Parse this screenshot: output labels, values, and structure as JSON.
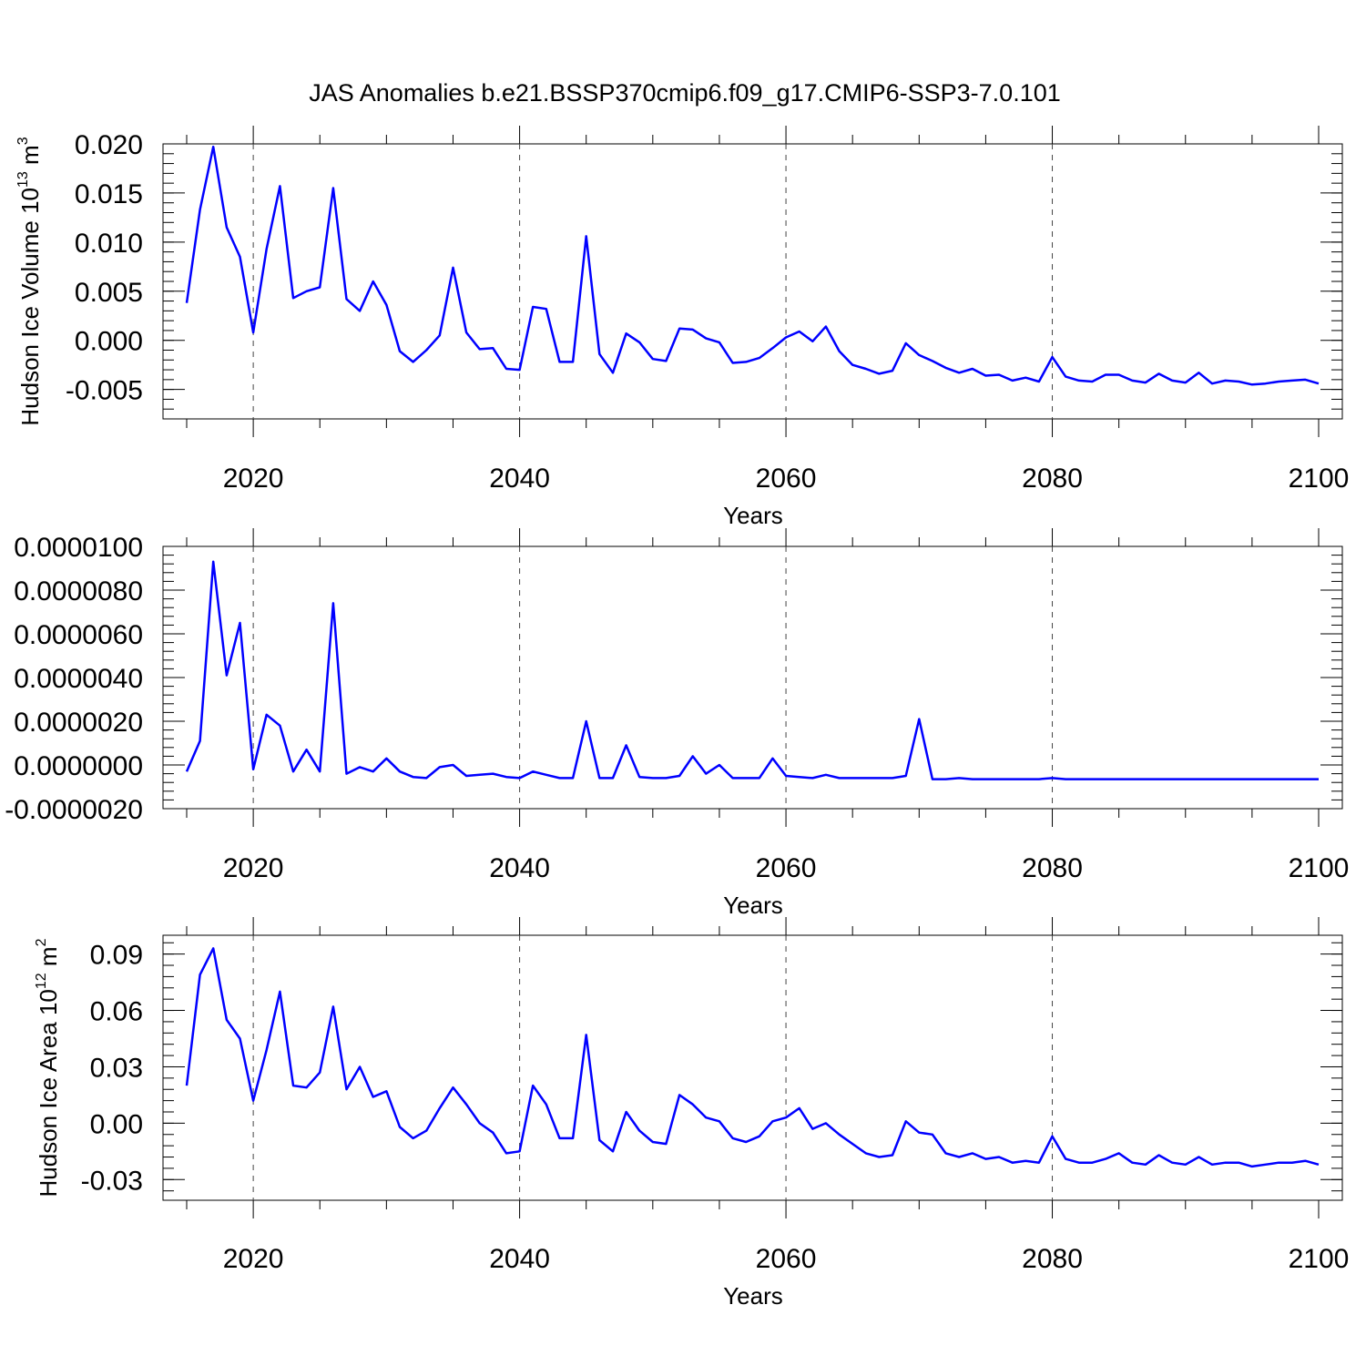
{
  "title": "JAS Anomalies b.e21.BSSP370cmip6.f09_g17.CMIP6-SSP3-7.0.101",
  "chart_data": [
    {
      "type": "line",
      "xlabel": "Years",
      "ylabel": "Hudson Ice Volume 10",
      "ylabel_exp": "13",
      "ylabel_unit": " m",
      "ylabel_unit_exp": "3",
      "xlim": [
        2015,
        2100
      ],
      "ylim": [
        -0.008,
        0.02
      ],
      "xticks": [
        2020,
        2040,
        2060,
        2080,
        2100
      ],
      "xtick_labels": [
        "2020",
        "2040",
        "2060",
        "2080",
        "2100"
      ],
      "yticks": [
        -0.005,
        0.0,
        0.005,
        0.01,
        0.015,
        0.02
      ],
      "ytick_labels": [
        "-0.005",
        "0.000",
        "0.005",
        "0.010",
        "0.015",
        "0.020"
      ],
      "color": "#0000ff",
      "x": [
        2015,
        2016,
        2017,
        2018,
        2019,
        2020,
        2021,
        2022,
        2023,
        2024,
        2025,
        2026,
        2027,
        2028,
        2029,
        2030,
        2031,
        2032,
        2033,
        2034,
        2035,
        2036,
        2037,
        2038,
        2039,
        2040,
        2041,
        2042,
        2043,
        2044,
        2045,
        2046,
        2047,
        2048,
        2049,
        2050,
        2051,
        2052,
        2053,
        2054,
        2055,
        2056,
        2057,
        2058,
        2059,
        2060,
        2061,
        2062,
        2063,
        2064,
        2065,
        2066,
        2067,
        2068,
        2069,
        2070,
        2071,
        2072,
        2073,
        2074,
        2075,
        2076,
        2077,
        2078,
        2079,
        2080,
        2081,
        2082,
        2083,
        2084,
        2085,
        2086,
        2087,
        2088,
        2089,
        2090,
        2091,
        2092,
        2093,
        2094,
        2095,
        2096,
        2097,
        2098,
        2099,
        2100
      ],
      "y": [
        0.0038,
        0.0133,
        0.0197,
        0.0115,
        0.0085,
        0.0008,
        0.0093,
        0.0157,
        0.0043,
        0.005,
        0.0054,
        0.0155,
        0.0042,
        0.003,
        0.006,
        0.0036,
        -0.0011,
        -0.0022,
        -0.001,
        0.0005,
        0.0074,
        0.0008,
        -0.0009,
        -0.0008,
        -0.0029,
        -0.003,
        0.0034,
        0.0032,
        -0.0022,
        -0.0022,
        0.0106,
        -0.0014,
        -0.0033,
        0.0007,
        -0.0002,
        -0.0019,
        -0.0021,
        0.0012,
        0.0011,
        0.0002,
        -0.0002,
        -0.0023,
        -0.0022,
        -0.0018,
        -0.0008,
        0.0003,
        0.0009,
        -0.0001,
        0.0014,
        -0.0011,
        -0.0025,
        -0.0029,
        -0.0034,
        -0.0031,
        -0.0003,
        -0.0015,
        -0.0021,
        -0.0028,
        -0.0033,
        -0.0029,
        -0.0036,
        -0.0035,
        -0.0041,
        -0.0038,
        -0.0042,
        -0.0017,
        -0.0037,
        -0.0041,
        -0.0042,
        -0.0035,
        -0.0035,
        -0.0041,
        -0.0043,
        -0.0034,
        -0.0041,
        -0.0043,
        -0.0033,
        -0.0044,
        -0.0041,
        -0.0042,
        -0.0045,
        -0.0044,
        -0.0042,
        -0.0041,
        -0.004,
        -0.0044
      ]
    },
    {
      "type": "line",
      "xlabel": "Years",
      "ylabel": "",
      "xlim": [
        2015,
        2100
      ],
      "ylim": [
        -2e-06,
        1e-05
      ],
      "xticks": [
        2020,
        2040,
        2060,
        2080,
        2100
      ],
      "xtick_labels": [
        "2020",
        "2040",
        "2060",
        "2080",
        "2100"
      ],
      "yticks": [
        -2e-06,
        0.0,
        2e-06,
        4e-06,
        6e-06,
        8e-06,
        1e-05
      ],
      "ytick_labels": [
        "-0.0000020",
        "0.0000000",
        "0.0000020",
        "0.0000040",
        "0.0000060",
        "0.0000080",
        "0.0000100"
      ],
      "color": "#0000ff",
      "x": [
        2015,
        2016,
        2017,
        2018,
        2019,
        2020,
        2021,
        2022,
        2023,
        2024,
        2025,
        2026,
        2027,
        2028,
        2029,
        2030,
        2031,
        2032,
        2033,
        2034,
        2035,
        2036,
        2037,
        2038,
        2039,
        2040,
        2041,
        2042,
        2043,
        2044,
        2045,
        2046,
        2047,
        2048,
        2049,
        2050,
        2051,
        2052,
        2053,
        2054,
        2055,
        2056,
        2057,
        2058,
        2059,
        2060,
        2061,
        2062,
        2063,
        2064,
        2065,
        2066,
        2067,
        2068,
        2069,
        2070,
        2071,
        2072,
        2073,
        2074,
        2075,
        2076,
        2077,
        2078,
        2079,
        2080,
        2081,
        2082,
        2083,
        2084,
        2085,
        2086,
        2087,
        2088,
        2089,
        2090,
        2091,
        2092,
        2093,
        2094,
        2095,
        2096,
        2097,
        2098,
        2099,
        2100
      ],
      "y": [
        -3e-07,
        1.1e-06,
        9.3e-06,
        4.1e-06,
        6.5e-06,
        -2e-07,
        2.3e-06,
        1.8e-06,
        -3e-07,
        7e-07,
        -3e-07,
        7.4e-06,
        -4e-07,
        -1e-07,
        -3e-07,
        3e-07,
        -3e-07,
        -5.5e-07,
        -6e-07,
        -1e-07,
        0.0,
        -5e-07,
        -4.5e-07,
        -4e-07,
        -5.5e-07,
        -6e-07,
        -3e-07,
        -4.5e-07,
        -6e-07,
        -6e-07,
        2e-06,
        -6e-07,
        -6e-07,
        9e-07,
        -5.5e-07,
        -6e-07,
        -6e-07,
        -5e-07,
        4e-07,
        -4e-07,
        0.0,
        -6e-07,
        -6e-07,
        -6e-07,
        3e-07,
        -5e-07,
        -5.5e-07,
        -6e-07,
        -4.5e-07,
        -6e-07,
        -6e-07,
        -6e-07,
        -6e-07,
        -6e-07,
        -5e-07,
        2.1e-06,
        -6.5e-07,
        -6.5e-07,
        -6e-07,
        -6.5e-07,
        -6.5e-07,
        -6.5e-07,
        -6.5e-07,
        -6.5e-07,
        -6.5e-07,
        -6e-07,
        -6.5e-07,
        -6.5e-07,
        -6.5e-07,
        -6.5e-07,
        -6.5e-07,
        -6.5e-07,
        -6.5e-07,
        -6.5e-07,
        -6.5e-07,
        -6.5e-07,
        -6.5e-07,
        -6.5e-07,
        -6.5e-07,
        -6.5e-07,
        -6.5e-07,
        -6.5e-07,
        -6.5e-07,
        -6.5e-07,
        -6.5e-07,
        -6.5e-07
      ]
    },
    {
      "type": "line",
      "xlabel": "Years",
      "ylabel": "Hudson Ice Area 10",
      "ylabel_exp": "12",
      "ylabel_unit": " m",
      "ylabel_unit_exp": "2",
      "xlim": [
        2015,
        2100
      ],
      "ylim": [
        -0.041,
        0.1
      ],
      "xticks": [
        2020,
        2040,
        2060,
        2080,
        2100
      ],
      "xtick_labels": [
        "2020",
        "2040",
        "2060",
        "2080",
        "2100"
      ],
      "yticks": [
        -0.03,
        0.0,
        0.03,
        0.06,
        0.09
      ],
      "ytick_labels": [
        "-0.03",
        "0.00",
        "0.03",
        "0.06",
        "0.09"
      ],
      "color": "#0000ff",
      "x": [
        2015,
        2016,
        2017,
        2018,
        2019,
        2020,
        2021,
        2022,
        2023,
        2024,
        2025,
        2026,
        2027,
        2028,
        2029,
        2030,
        2031,
        2032,
        2033,
        2034,
        2035,
        2036,
        2037,
        2038,
        2039,
        2040,
        2041,
        2042,
        2043,
        2044,
        2045,
        2046,
        2047,
        2048,
        2049,
        2050,
        2051,
        2052,
        2053,
        2054,
        2055,
        2056,
        2057,
        2058,
        2059,
        2060,
        2061,
        2062,
        2063,
        2064,
        2065,
        2066,
        2067,
        2068,
        2069,
        2070,
        2071,
        2072,
        2073,
        2074,
        2075,
        2076,
        2077,
        2078,
        2079,
        2080,
        2081,
        2082,
        2083,
        2084,
        2085,
        2086,
        2087,
        2088,
        2089,
        2090,
        2091,
        2092,
        2093,
        2094,
        2095,
        2096,
        2097,
        2098,
        2099,
        2100
      ],
      "y": [
        0.02,
        0.079,
        0.093,
        0.055,
        0.045,
        0.012,
        0.039,
        0.07,
        0.02,
        0.019,
        0.027,
        0.062,
        0.018,
        0.03,
        0.014,
        0.017,
        -0.002,
        -0.008,
        -0.004,
        0.008,
        0.019,
        0.01,
        0.0,
        -0.005,
        -0.016,
        -0.015,
        0.02,
        0.01,
        -0.008,
        -0.008,
        0.047,
        -0.009,
        -0.015,
        0.006,
        -0.004,
        -0.01,
        -0.011,
        0.015,
        0.01,
        0.003,
        0.001,
        -0.008,
        -0.01,
        -0.007,
        0.001,
        0.003,
        0.008,
        -0.003,
        0.0,
        -0.006,
        -0.011,
        -0.016,
        -0.018,
        -0.017,
        0.001,
        -0.005,
        -0.006,
        -0.016,
        -0.018,
        -0.016,
        -0.019,
        -0.018,
        -0.021,
        -0.02,
        -0.021,
        -0.007,
        -0.019,
        -0.021,
        -0.021,
        -0.019,
        -0.016,
        -0.021,
        -0.022,
        -0.017,
        -0.021,
        -0.022,
        -0.018,
        -0.022,
        -0.021,
        -0.021,
        -0.023,
        -0.022,
        -0.021,
        -0.021,
        -0.02,
        -0.022
      ]
    }
  ]
}
